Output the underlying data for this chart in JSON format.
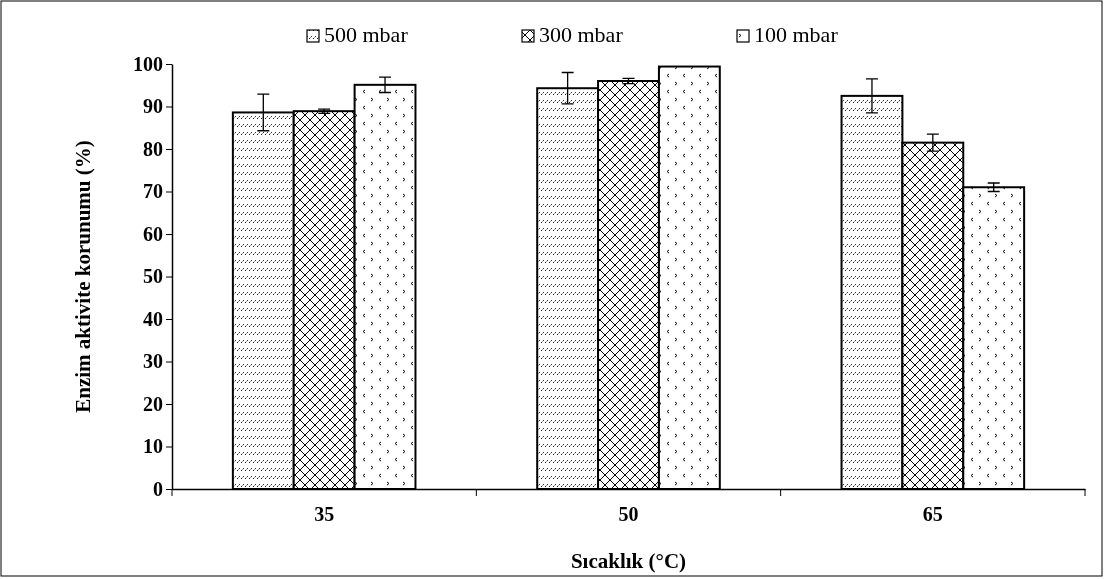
{
  "chart_data": {
    "type": "bar",
    "xlabel": "Sıcaklık (°C)",
    "ylabel": "Enzim aktivite korunumu (%)",
    "categories": [
      "35",
      "50",
      "65"
    ],
    "series": [
      {
        "name": "500 mbar",
        "color": "#000000",
        "values": [
          88.6,
          94.3,
          92.5
        ],
        "errors": [
          4.3,
          3.7,
          4
        ]
      },
      {
        "name": "300 mbar",
        "color": "#000000",
        "values": [
          88.9,
          96,
          81.5
        ],
        "errors": [
          0.5,
          0.6,
          2
        ]
      },
      {
        "name": "100 mbar",
        "color": "#000000",
        "values": [
          95.1,
          99.4,
          71
        ],
        "errors": [
          1.8,
          null,
          1
        ]
      }
    ],
    "ylim": [
      0,
      100
    ],
    "yticks": [
      0,
      10,
      20,
      30,
      40,
      50,
      60,
      70,
      80,
      90,
      100
    ],
    "grid": false,
    "legend": "top"
  }
}
